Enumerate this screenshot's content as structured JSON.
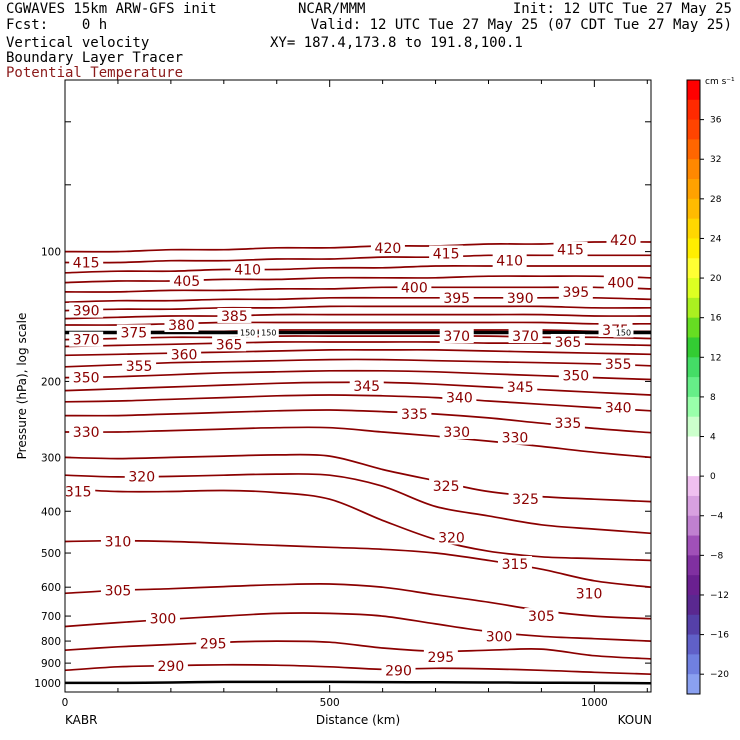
{
  "header": {
    "title": "CGWAVES 15km ARW-GFS init",
    "fcst": "Fcst:    0 h",
    "field1": "Vertical velocity",
    "field2": "Boundary Layer Tracer",
    "field3": "Potential Temperature",
    "source": "NCAR/MMM",
    "init": "Init: 12 UTC Tue 27 May 25",
    "valid": "Valid: 12 UTC Tue 27 May 25 (07 CDT Tue 27 May 25)",
    "xy": "XY= 187.4,173.8 to 191.8,100.1"
  },
  "colors": {
    "theta": "#8b0000",
    "tracer": "#000000"
  },
  "chart_data": {
    "type": "line",
    "title": "Potential Temperature cross section",
    "xlabel": "Distance (km)",
    "ylabel": "Pressure (hPa), log scale",
    "x_start_label": "KABR",
    "x_end_label": "KOUN",
    "xlim": [
      0,
      1107
    ],
    "ylim": [
      1050,
      40
    ],
    "y_scale": "log",
    "x_ticks": [
      0,
      500,
      1000
    ],
    "y_ticks": [
      100,
      200,
      300,
      400,
      500,
      600,
      700,
      800,
      900,
      1000
    ],
    "x_nodes": [
      0,
      100,
      200,
      300,
      400,
      500,
      600,
      700,
      800,
      900,
      1000,
      1107
    ],
    "contour_interval": 5,
    "isentropes": [
      {
        "theta": 290,
        "p": [
          935,
          918,
          912,
          908,
          910,
          918,
          930,
          925,
          928,
          935,
          945,
          955
        ]
      },
      {
        "theta": 295,
        "p": [
          840,
          825,
          815,
          805,
          800,
          805,
          830,
          845,
          840,
          835,
          865,
          880
        ]
      },
      {
        "theta": 300,
        "p": [
          740,
          725,
          712,
          700,
          690,
          690,
          700,
          730,
          760,
          780,
          790,
          800
        ]
      },
      {
        "theta": 305,
        "p": [
          620,
          610,
          605,
          598,
          592,
          590,
          600,
          625,
          650,
          680,
          700,
          710
        ]
      },
      {
        "theta": 310,
        "p": [
          470,
          468,
          470,
          475,
          480,
          485,
          490,
          500,
          520,
          545,
          580,
          600
        ]
      },
      {
        "theta": 315,
        "p": [
          355,
          360,
          360,
          358,
          362,
          375,
          420,
          465,
          495,
          510,
          515,
          520
        ]
      },
      {
        "theta": 320,
        "p": [
          330,
          333,
          332,
          330,
          328,
          330,
          350,
          390,
          410,
          430,
          440,
          450
        ]
      },
      {
        "theta": 325,
        "p": [
          300,
          302,
          300,
          298,
          296,
          298,
          320,
          340,
          360,
          370,
          375,
          380
        ]
      },
      {
        "theta": 330,
        "p": [
          262,
          262,
          260,
          258,
          256,
          256,
          262,
          268,
          275,
          283,
          292,
          300
        ]
      },
      {
        "theta": 335,
        "p": [
          240,
          240,
          238,
          236,
          234,
          233,
          235,
          238,
          243,
          250,
          257,
          263
        ]
      },
      {
        "theta": 340,
        "p": [
          223,
          222,
          220,
          218,
          216,
          215,
          216,
          218,
          222,
          226,
          230,
          234
        ]
      },
      {
        "theta": 345,
        "p": [
          210,
          208,
          206,
          204,
          202,
          201,
          201,
          203,
          206,
          209,
          212,
          215
        ]
      },
      {
        "theta": 350,
        "p": [
          196,
          195,
          193,
          191,
          190,
          189,
          189,
          190,
          192,
          194,
          196,
          198
        ]
      },
      {
        "theta": 355,
        "p": [
          185,
          183,
          181,
          180,
          179,
          178,
          178,
          179,
          180,
          181,
          182,
          184
        ]
      },
      {
        "theta": 360,
        "p": [
          174,
          173,
          172,
          171,
          170,
          169,
          169,
          169,
          170,
          171,
          172,
          173
        ]
      },
      {
        "theta": 365,
        "p": [
          166,
          165,
          164,
          163,
          162,
          162,
          162,
          162,
          163,
          163,
          164,
          165
        ]
      },
      {
        "theta": 370,
        "p": [
          160,
          159,
          158,
          158,
          157,
          157,
          157,
          157,
          157,
          158,
          158,
          159
        ]
      },
      {
        "theta": 375,
        "p": [
          154,
          154,
          153,
          153,
          152,
          152,
          152,
          152,
          152,
          152,
          153,
          153
        ]
      },
      {
        "theta": 380,
        "p": [
          148,
          148,
          147,
          146,
          146,
          146,
          146,
          146,
          146,
          146,
          147,
          147
        ]
      },
      {
        "theta": 385,
        "p": [
          143,
          142,
          141,
          141,
          140,
          140,
          140,
          140,
          140,
          140,
          141,
          141
        ]
      },
      {
        "theta": 390,
        "p": [
          137,
          136,
          136,
          135,
          135,
          134,
          134,
          134,
          134,
          134,
          135,
          135
        ]
      },
      {
        "theta": 395,
        "p": [
          131,
          130,
          130,
          129,
          129,
          128,
          128,
          128,
          128,
          128,
          128,
          129
        ]
      },
      {
        "theta": 400,
        "p": [
          124,
          124,
          123,
          123,
          122,
          122,
          121,
          121,
          121,
          121,
          121,
          122
        ]
      },
      {
        "theta": 405,
        "p": [
          118,
          117,
          117,
          116,
          116,
          115,
          115,
          115,
          114,
          114,
          114,
          115
        ]
      },
      {
        "theta": 410,
        "p": [
          112,
          111,
          111,
          110,
          110,
          109,
          109,
          108,
          108,
          108,
          108,
          108
        ]
      },
      {
        "theta": 415,
        "p": [
          106,
          106,
          105,
          105,
          104,
          104,
          103,
          103,
          102,
          102,
          102,
          102
        ]
      },
      {
        "theta": 420,
        "p": [
          100,
          100,
          99,
          99,
          98,
          98,
          97,
          97,
          96,
          96,
          95,
          95
        ]
      }
    ],
    "labels": [
      {
        "text": "290",
        "x": 200,
        "p": 915
      },
      {
        "text": "290",
        "x": 630,
        "p": 935
      },
      {
        "text": "295",
        "x": 280,
        "p": 810
      },
      {
        "text": "295",
        "x": 710,
        "p": 870
      },
      {
        "text": "300",
        "x": 185,
        "p": 710
      },
      {
        "text": "300",
        "x": 820,
        "p": 780
      },
      {
        "text": "305",
        "x": 100,
        "p": 610
      },
      {
        "text": "305",
        "x": 900,
        "p": 700
      },
      {
        "text": "310",
        "x": 100,
        "p": 470
      },
      {
        "text": "310",
        "x": 990,
        "p": 620
      },
      {
        "text": "315",
        "x": 25,
        "p": 360
      },
      {
        "text": "315",
        "x": 850,
        "p": 530
      },
      {
        "text": "320",
        "x": 145,
        "p": 332
      },
      {
        "text": "320",
        "x": 730,
        "p": 460
      },
      {
        "text": "325",
        "x": 720,
        "p": 350
      },
      {
        "text": "325",
        "x": 870,
        "p": 375
      },
      {
        "text": "330",
        "x": 40,
        "p": 262
      },
      {
        "text": "330",
        "x": 740,
        "p": 262
      },
      {
        "text": "330",
        "x": 850,
        "p": 270
      },
      {
        "text": "335",
        "x": 660,
        "p": 238
      },
      {
        "text": "335",
        "x": 950,
        "p": 250
      },
      {
        "text": "340",
        "x": 745,
        "p": 218
      },
      {
        "text": "340",
        "x": 1045,
        "p": 230
      },
      {
        "text": "345",
        "x": 570,
        "p": 205
      },
      {
        "text": "345",
        "x": 860,
        "p": 206
      },
      {
        "text": "350",
        "x": 40,
        "p": 196
      },
      {
        "text": "350",
        "x": 965,
        "p": 194
      },
      {
        "text": "355",
        "x": 140,
        "p": 184
      },
      {
        "text": "355",
        "x": 1045,
        "p": 182
      },
      {
        "text": "360",
        "x": 225,
        "p": 173
      },
      {
        "text": "365",
        "x": 310,
        "p": 164
      },
      {
        "text": "365",
        "x": 950,
        "p": 162
      },
      {
        "text": "370",
        "x": 40,
        "p": 160
      },
      {
        "text": "370",
        "x": 740,
        "p": 157
      },
      {
        "text": "370",
        "x": 870,
        "p": 157
      },
      {
        "text": "375",
        "x": 130,
        "p": 154
      },
      {
        "text": "375",
        "x": 1040,
        "p": 152
      },
      {
        "text": "380",
        "x": 220,
        "p": 148
      },
      {
        "text": "385",
        "x": 320,
        "p": 141
      },
      {
        "text": "390",
        "x": 40,
        "p": 137
      },
      {
        "text": "390",
        "x": 860,
        "p": 128
      },
      {
        "text": "395",
        "x": 740,
        "p": 128
      },
      {
        "text": "395",
        "x": 965,
        "p": 124
      },
      {
        "text": "400",
        "x": 660,
        "p": 121
      },
      {
        "text": "400",
        "x": 1050,
        "p": 118
      },
      {
        "text": "405",
        "x": 230,
        "p": 117
      },
      {
        "text": "410",
        "x": 345,
        "p": 110
      },
      {
        "text": "410",
        "x": 840,
        "p": 105
      },
      {
        "text": "415",
        "x": 40,
        "p": 106
      },
      {
        "text": "415",
        "x": 720,
        "p": 101
      },
      {
        "text": "415",
        "x": 955,
        "p": 99
      },
      {
        "text": "420",
        "x": 610,
        "p": 98
      },
      {
        "text": "420",
        "x": 1055,
        "p": 94
      }
    ],
    "tracer": {
      "label": "150",
      "p": 154,
      "surface_p": [
        1000,
        1000,
        998,
        995,
        995,
        995,
        996,
        997,
        998,
        999,
        1000,
        1002
      ],
      "label_x": [
        345,
        385,
        1055
      ]
    }
  },
  "colorbar": {
    "unit": "cm s⁻¹",
    "tick_labels": [
      "36",
      "32",
      "28",
      "24",
      "20",
      "16",
      "12",
      "8",
      "4",
      "0",
      "−4",
      "−8",
      "−12",
      "−16",
      "−20"
    ],
    "colors": [
      "#ff0000",
      "#ff2a00",
      "#ff4400",
      "#ff6600",
      "#ff8800",
      "#ffa200",
      "#ffbb00",
      "#ffd700",
      "#ffee00",
      "#ffff33",
      "#ddff22",
      "#aaf020",
      "#66dd22",
      "#33cc33",
      "#44dd66",
      "#66ee88",
      "#99ffaa",
      "#ccffcc",
      "#ffffff",
      "#ffffff",
      "#f0c0f0",
      "#d8a0e0",
      "#c080d0",
      "#a050b8",
      "#8030a0",
      "#6a2090",
      "#5a2890",
      "#5540a8",
      "#6060c8",
      "#7080e0",
      "#8aa0f0"
    ]
  }
}
